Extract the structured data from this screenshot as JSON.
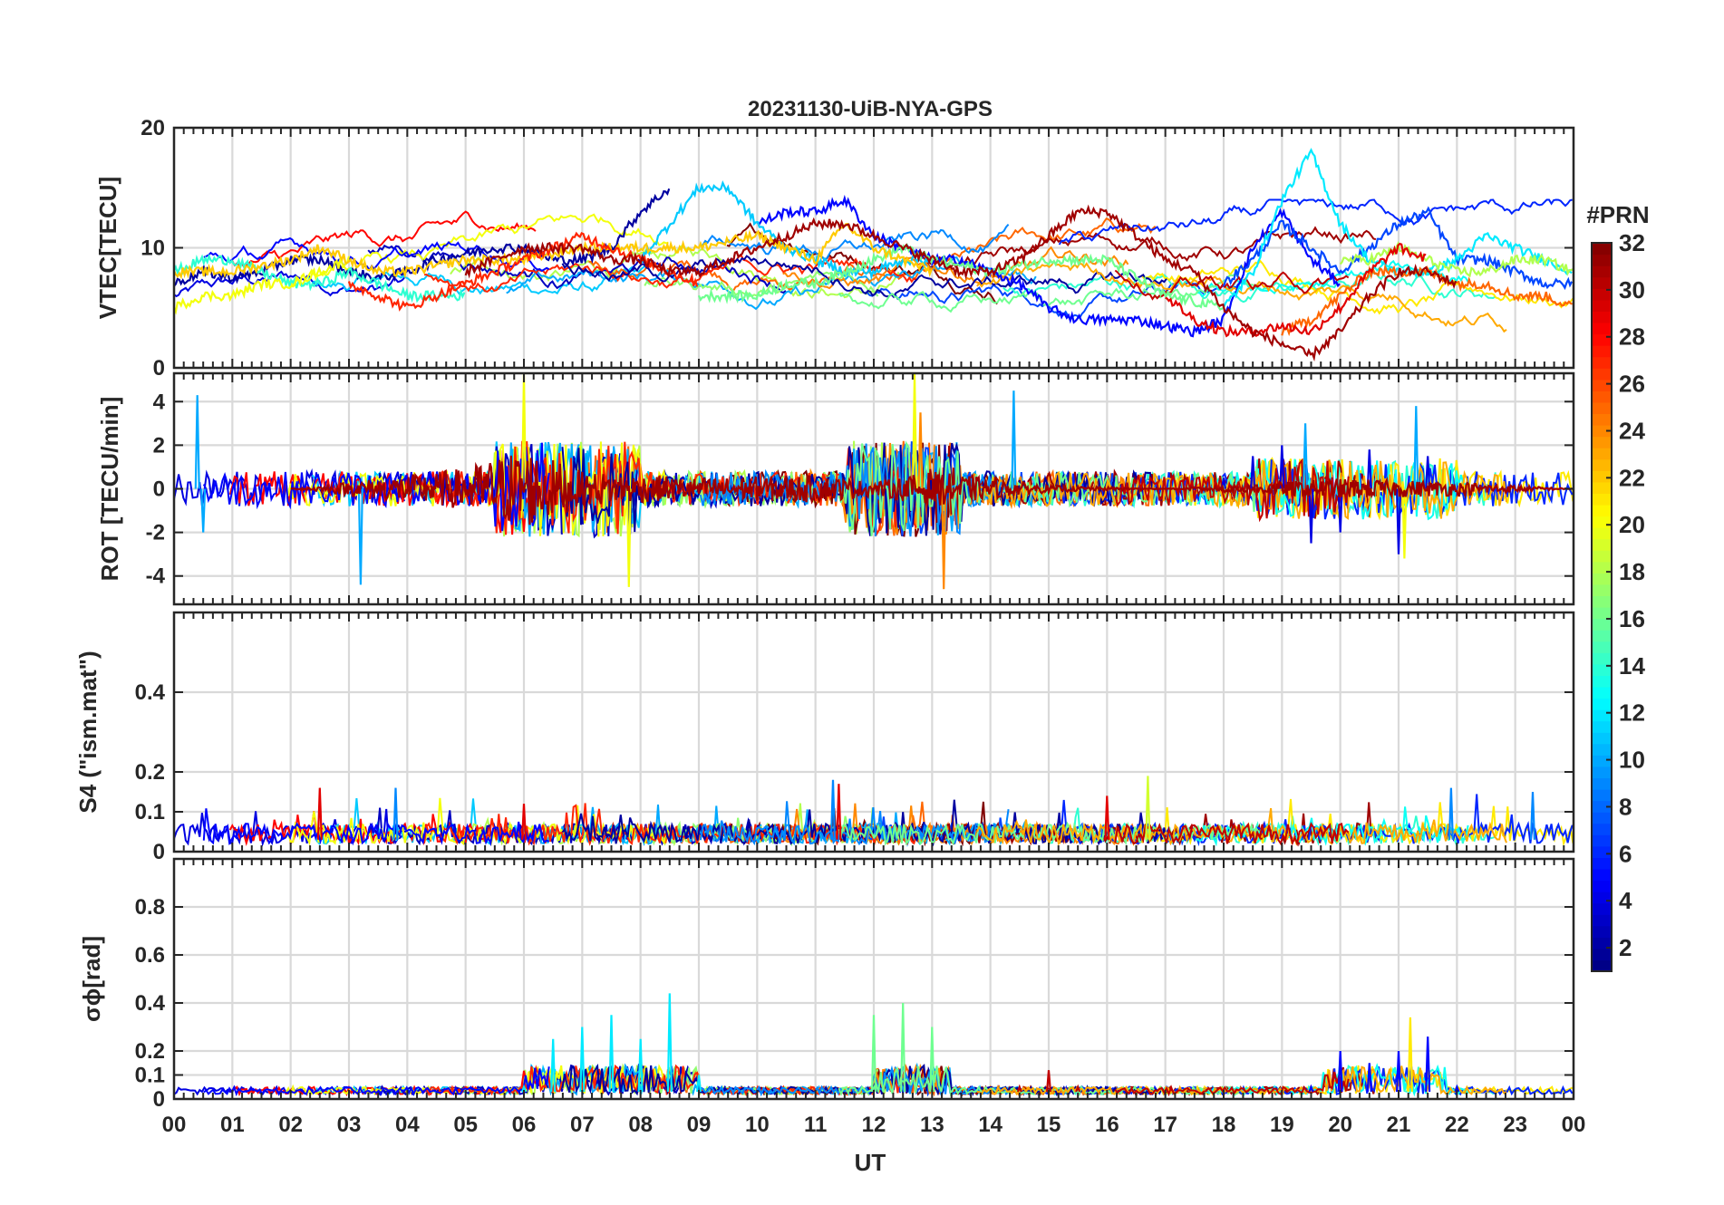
{
  "figure": {
    "title": "20231130-UiB-NYA-GPS",
    "xlabel": "UT",
    "colorbar": {
      "label": "#PRN",
      "range": [
        1,
        32
      ],
      "ticks": [
        2,
        4,
        6,
        8,
        10,
        12,
        14,
        16,
        18,
        20,
        22,
        24,
        26,
        28,
        30,
        32
      ],
      "colormap": "jet"
    }
  },
  "chart_data": [
    {
      "type": "line",
      "panel": "vtec",
      "ylabel": "VTEC[TECU]",
      "ylim": [
        0,
        20
      ],
      "yticks": [
        0,
        10,
        20
      ],
      "xlim": [
        0,
        24
      ],
      "xticks": [
        "00",
        "01",
        "02",
        "03",
        "04",
        "05",
        "06",
        "07",
        "08",
        "09",
        "10",
        "11",
        "12",
        "13",
        "14",
        "15",
        "16",
        "17",
        "18",
        "19",
        "20",
        "21",
        "22",
        "23",
        "00"
      ],
      "series": [
        {
          "name": "PRN 2",
          "prn": 2,
          "x": [
            0,
            0.5,
            1,
            1.5,
            2,
            2.5,
            3,
            3.5,
            4,
            4.5,
            5,
            5.5,
            6,
            6.5,
            7,
            7.5,
            8,
            8.5
          ],
          "values": [
            7,
            8,
            7.5,
            8,
            9,
            9,
            8,
            7.5,
            8,
            9,
            9.5,
            10,
            10,
            9,
            9,
            10,
            13,
            15
          ]
        },
        {
          "name": "PRN 5",
          "prn": 5,
          "x": [
            10,
            10.5,
            11,
            11.5,
            12,
            12.5,
            13,
            13.5,
            14,
            14.5,
            15,
            15.5,
            16,
            16.5,
            17,
            17.5,
            18,
            18.5,
            19,
            19.5,
            20
          ],
          "values": [
            12,
            13,
            13,
            14,
            11,
            10,
            9,
            9,
            8,
            7,
            5,
            4,
            4,
            4,
            3.5,
            3,
            4,
            10,
            13,
            9,
            7
          ]
        },
        {
          "name": "PRN 7",
          "prn": 7,
          "x": [
            18,
            18.5,
            19,
            19.5,
            20,
            20.5,
            21,
            21.5,
            22,
            22.5,
            23,
            23.5,
            24
          ],
          "values": [
            7,
            9,
            12,
            10,
            8,
            10,
            12,
            13,
            9,
            9,
            8,
            7,
            7
          ]
        },
        {
          "name": "PRN 11",
          "prn": 11,
          "x": [
            8,
            8.5,
            9,
            9.5,
            10,
            10.5,
            11,
            11.5,
            12,
            12.5,
            13
          ],
          "values": [
            9,
            12,
            15,
            15,
            12,
            10,
            9,
            8,
            8,
            9,
            9
          ]
        },
        {
          "name": "PRN 12",
          "prn": 12,
          "x": [
            18,
            18.5,
            19,
            19.5,
            20,
            20.5,
            21,
            21.5,
            22,
            22.5,
            23,
            23.5,
            24
          ],
          "values": [
            5,
            8,
            14,
            18,
            12,
            9,
            8,
            8,
            9,
            11,
            10,
            9,
            8
          ]
        },
        {
          "name": "PRN 14",
          "prn": 14,
          "x": [
            0,
            0.5,
            1,
            1.5,
            2,
            2.5,
            3,
            3.5,
            4,
            4.5,
            5
          ],
          "values": [
            8,
            9,
            9,
            8,
            7,
            7,
            8,
            7,
            6,
            6,
            6
          ]
        },
        {
          "name": "PRN 16",
          "prn": 16,
          "x": [
            9,
            10,
            10.5,
            11,
            11.5,
            12,
            12.5,
            13,
            14,
            15,
            16,
            17,
            18
          ],
          "values": [
            6,
            6,
            7,
            7,
            8,
            9,
            10,
            9,
            8,
            9,
            9,
            6,
            5
          ]
        },
        {
          "name": "PRN 18",
          "prn": 18,
          "x": [
            20,
            20.5,
            21,
            21.5,
            22,
            22.5,
            23,
            23.5,
            24
          ],
          "values": [
            9,
            9,
            10,
            9,
            8,
            8,
            9,
            9,
            8
          ]
        },
        {
          "name": "PRN 20",
          "prn": 20,
          "x": [
            0,
            0.5,
            1,
            1.5,
            2,
            2.5,
            3
          ],
          "values": [
            5,
            6,
            6,
            7,
            7,
            8,
            9
          ]
        },
        {
          "name": "PRN 22",
          "prn": 22,
          "x": [
            0,
            1,
            2,
            2.5,
            3,
            3.5,
            4,
            5,
            6,
            7,
            8,
            9,
            10,
            11,
            11.5,
            12,
            12.5,
            13
          ],
          "values": [
            8,
            8,
            9,
            10,
            9,
            8,
            8,
            9,
            9,
            10,
            10,
            10,
            11,
            9,
            12,
            10,
            9,
            8
          ]
        },
        {
          "name": "PRN 25",
          "prn": 25,
          "x": [
            19,
            19.5,
            20,
            20.5,
            21,
            21.5,
            22,
            22.5,
            23,
            23.5,
            24
          ],
          "values": [
            3,
            4,
            6,
            8,
            8,
            8,
            7,
            7,
            6,
            6,
            5
          ]
        },
        {
          "name": "PRN 27",
          "prn": 27,
          "x": [
            3,
            3.5,
            4,
            4.5,
            5,
            5.5,
            6,
            6.5,
            7,
            7.5,
            8,
            8.5,
            9
          ],
          "values": [
            7,
            6,
            5,
            6,
            7,
            8,
            9,
            10,
            11,
            10,
            9,
            8,
            7
          ]
        },
        {
          "name": "PRN 29",
          "prn": 29,
          "x": [
            17,
            17.5,
            18,
            18.5,
            19,
            19.5,
            20,
            20.5,
            21,
            21.5
          ],
          "values": [
            6,
            4,
            3,
            3,
            3.5,
            3,
            5,
            8,
            10,
            9
          ]
        },
        {
          "name": "PRN 31",
          "prn": 31,
          "x": [
            5,
            5.5,
            6,
            6.5,
            7,
            7.5,
            8,
            8.5,
            9,
            9.5,
            10,
            10.5,
            11,
            11.5,
            12,
            12.5,
            13,
            13.5,
            14,
            14.5,
            15,
            15.5,
            16,
            16.5,
            17,
            17.5,
            18,
            18.5,
            19,
            19.5,
            20,
            20.5,
            21,
            21.5,
            22
          ],
          "values": [
            8,
            9,
            10,
            10,
            10,
            9,
            9,
            8,
            8,
            9,
            10,
            11,
            12,
            12,
            11,
            10,
            9,
            8,
            8,
            9,
            11,
            13,
            13,
            11,
            9,
            8,
            5,
            3,
            2,
            1,
            3,
            6,
            8,
            8,
            7
          ]
        }
      ]
    },
    {
      "type": "line",
      "panel": "rot",
      "ylabel": "ROT [TECU/min]",
      "ylim": [
        -5.3,
        5.3
      ],
      "yticks": [
        -4,
        -2,
        0,
        2,
        4
      ],
      "xlim": [
        0,
        24
      ],
      "series": [
        {
          "name": "PRN 4",
          "prn": 4,
          "x": [
            17.5,
            18,
            18.5,
            19,
            19.5,
            20,
            20.5,
            21,
            21.5
          ],
          "values": [
            0,
            0.5,
            1.5,
            2,
            -2.5,
            -2,
            1.8,
            -3,
            1.5
          ]
        },
        {
          "name": "PRN 10",
          "prn": 10,
          "x": [
            0.4,
            0.5,
            3.2,
            14.4,
            19.4,
            21.3
          ],
          "values": [
            4.3,
            -2,
            -4.4,
            4.5,
            3,
            3.8
          ]
        },
        {
          "name": "PRN 20",
          "prn": 20,
          "x": [
            6,
            7.8,
            12.7,
            21.1
          ],
          "values": [
            5.3,
            -4.5,
            5.3,
            -3.2
          ]
        },
        {
          "name": "PRN 24",
          "prn": 24,
          "x": [
            12.8,
            13.2
          ],
          "values": [
            3.5,
            -4.6
          ]
        },
        {
          "name": "PRN 31",
          "prn": 31,
          "x": [
            2,
            5,
            6,
            7,
            9,
            11,
            12,
            13,
            15,
            17,
            20,
            22,
            24
          ],
          "values": [
            0,
            0.6,
            1.2,
            0.5,
            0.3,
            0.4,
            0.2,
            0.5,
            0.1,
            0,
            0.3,
            0.2,
            0
          ]
        }
      ]
    },
    {
      "type": "line",
      "panel": "s4",
      "ylabel": "S4 (\"ism.mat\")",
      "ylim": [
        0,
        0.6
      ],
      "yticks": [
        0,
        0.1,
        0.2,
        0.4
      ],
      "xlim": [
        0,
        24
      ],
      "series": [
        {
          "name": "PRN 9",
          "prn": 9,
          "x": [
            3.8,
            11.3,
            21.9,
            23.3
          ],
          "values": [
            0.16,
            0.18,
            0.16,
            0.15
          ]
        },
        {
          "name": "PRN 19",
          "prn": 19,
          "x": [
            16.7
          ],
          "values": [
            0.19
          ]
        },
        {
          "name": "PRN 29",
          "prn": 29,
          "x": [
            2.5,
            6,
            11.4,
            16
          ],
          "values": [
            0.16,
            0.12,
            0.17,
            0.14
          ]
        }
      ]
    },
    {
      "type": "line",
      "panel": "sigma-phi",
      "ylabel": "σϕ[rad]",
      "ylim": [
        0,
        1.0
      ],
      "yticks": [
        0,
        0.1,
        0.2,
        0.4,
        0.6,
        0.8
      ],
      "xlim": [
        0,
        24
      ],
      "series": [
        {
          "name": "PRN 12",
          "prn": 12,
          "x": [
            6,
            6.5,
            7,
            7.5,
            8,
            8.5,
            9
          ],
          "values": [
            0.05,
            0.25,
            0.3,
            0.35,
            0.25,
            0.44,
            0.1
          ]
        },
        {
          "name": "PRN 16",
          "prn": 16,
          "x": [
            12,
            12.5,
            13
          ],
          "values": [
            0.35,
            0.4,
            0.3
          ]
        },
        {
          "name": "PRN 21",
          "prn": 21,
          "x": [
            21.2
          ],
          "values": [
            0.34
          ]
        },
        {
          "name": "PRN 5",
          "prn": 5,
          "x": [
            19.5,
            20,
            20.5,
            21,
            21.5,
            22
          ],
          "values": [
            0.05,
            0.2,
            0.15,
            0.2,
            0.26,
            0.05
          ]
        },
        {
          "name": "PRN 30",
          "prn": 30,
          "x": [
            14.5,
            15,
            15.5
          ],
          "values": [
            0.05,
            0.12,
            0.05
          ]
        }
      ]
    }
  ]
}
